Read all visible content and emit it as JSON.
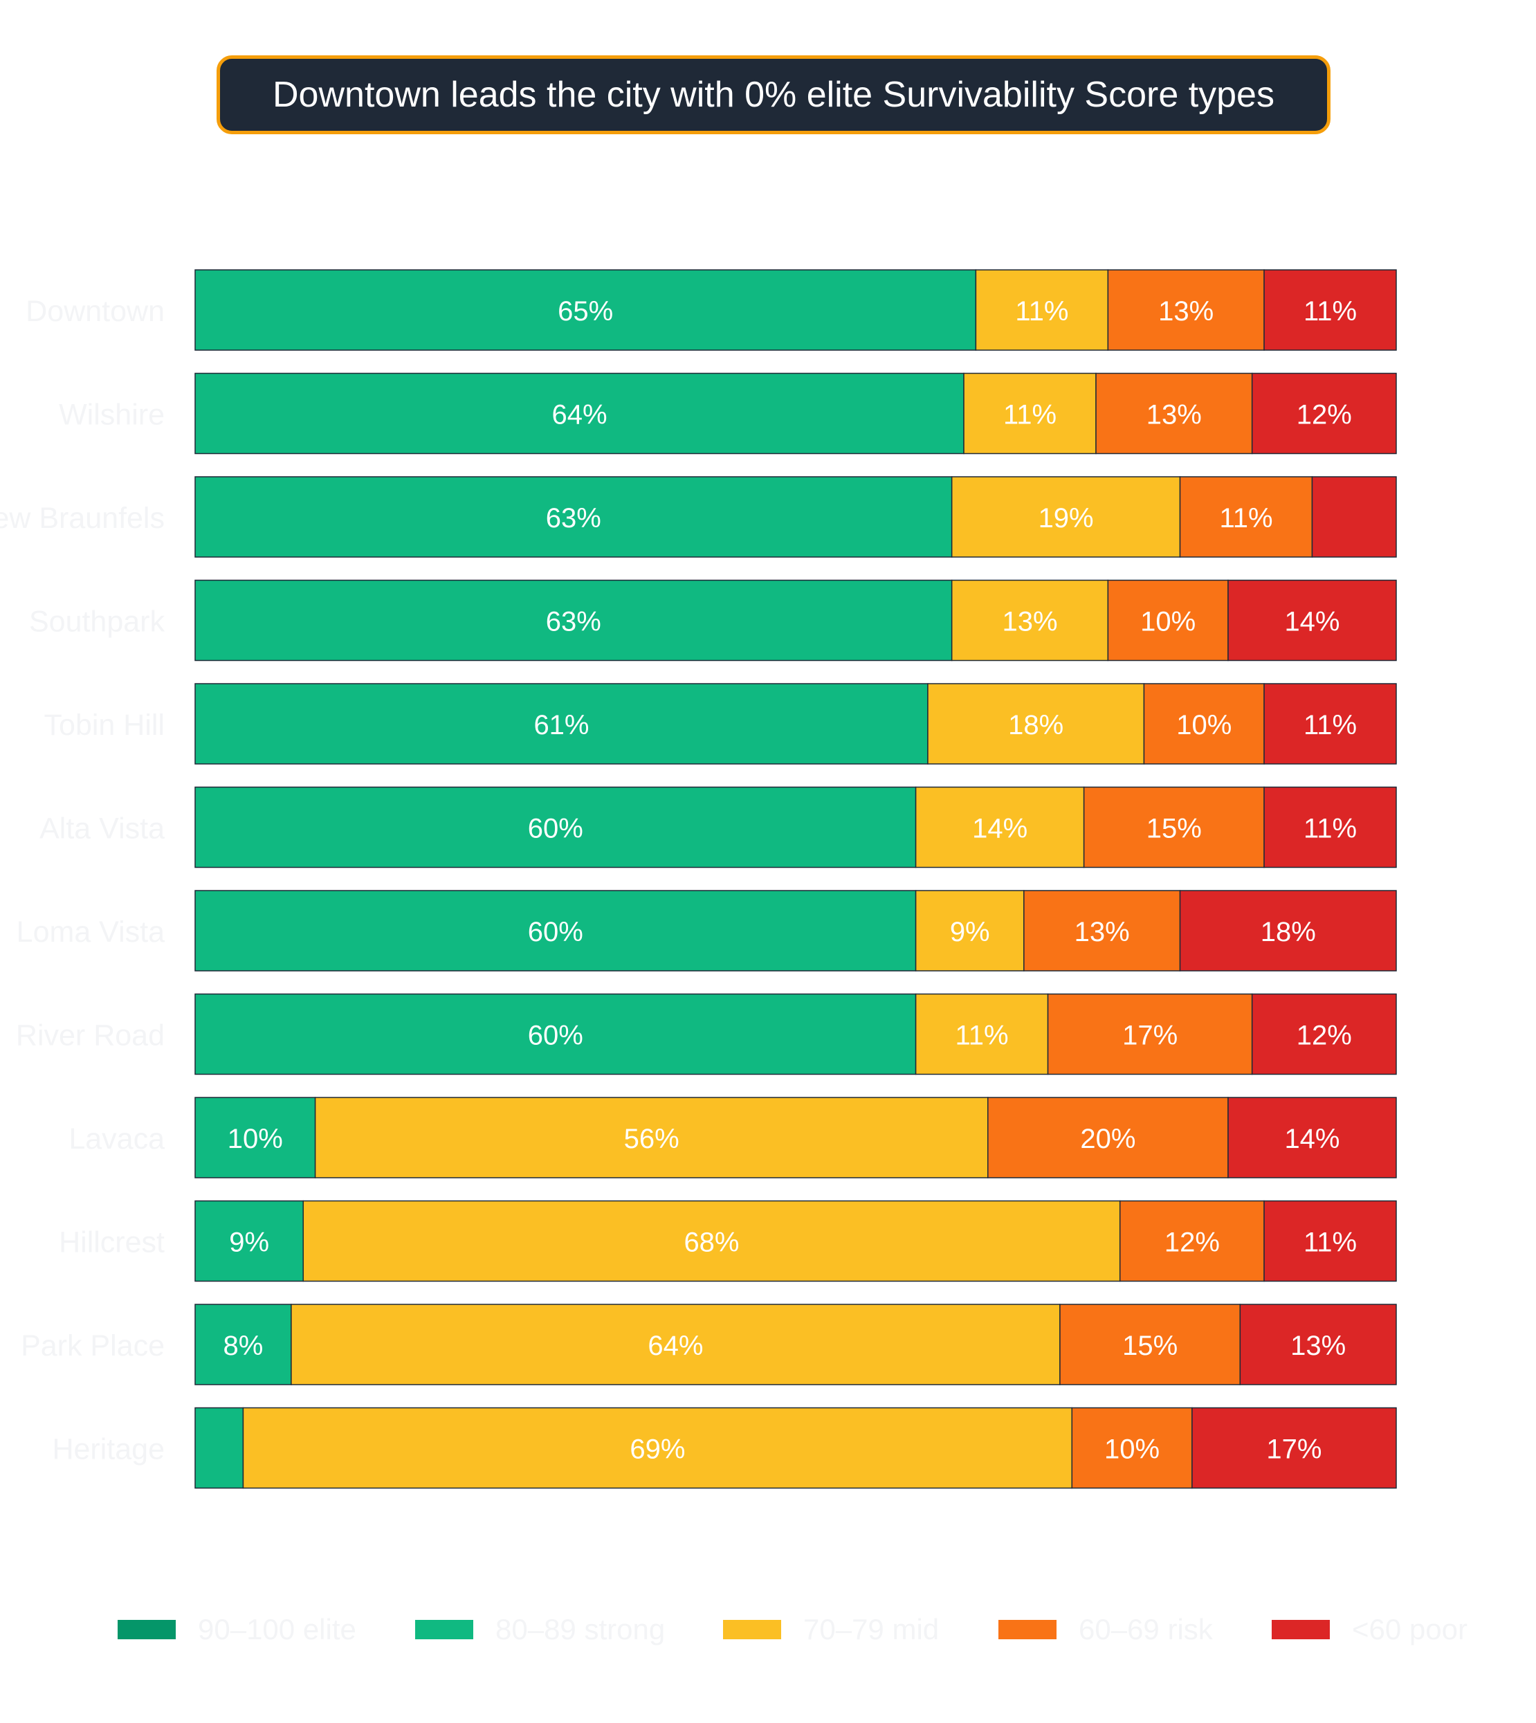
{
  "title": "Downtown leads the city with 0% elite Survivability Score types",
  "colors": {
    "elite": "#059669",
    "strong": "#10b981",
    "mid": "#fbbf24",
    "risk": "#f97316",
    "poor": "#dc2626"
  },
  "legend": [
    {
      "key": "elite",
      "label": "90–100 elite"
    },
    {
      "key": "strong",
      "label": "80–89 strong"
    },
    {
      "key": "mid",
      "label": "70–79 mid"
    },
    {
      "key": "risk",
      "label": "60–69 risk"
    },
    {
      "key": "poor",
      "label": "<60 poor"
    }
  ],
  "chart_data": {
    "type": "bar",
    "orientation": "horizontal",
    "stacked": true,
    "normalized_percent": true,
    "title": "Downtown leads the city with 0% elite Survivability Score types",
    "categories": [
      "Downtown",
      "Wilshire",
      "New Braunfels",
      "Southpark",
      "Tobin Hill",
      "Alta Vista",
      "Loma Vista",
      "River Road",
      "Lavaca",
      "Hillcrest",
      "Park Place",
      "Heritage"
    ],
    "series": [
      {
        "name": "90–100 elite",
        "key": "elite",
        "values": [
          0,
          0,
          0,
          0,
          0,
          0,
          0,
          0,
          0,
          0,
          0,
          0
        ]
      },
      {
        "name": "80–89 strong",
        "key": "strong",
        "values": [
          65,
          64,
          63,
          63,
          61,
          60,
          60,
          60,
          10,
          9,
          8,
          4
        ]
      },
      {
        "name": "70–79 mid",
        "key": "mid",
        "values": [
          11,
          11,
          19,
          13,
          18,
          14,
          9,
          11,
          56,
          68,
          64,
          69
        ]
      },
      {
        "name": "60–69 risk",
        "key": "risk",
        "values": [
          13,
          13,
          11,
          10,
          10,
          15,
          13,
          17,
          20,
          12,
          15,
          10
        ]
      },
      {
        "name": "<60 poor",
        "key": "poor",
        "values": [
          11,
          12,
          7,
          14,
          11,
          11,
          18,
          12,
          14,
          11,
          13,
          17
        ]
      }
    ],
    "xlim": [
      0,
      100
    ],
    "label_min_percent": 8,
    "legend_position": "bottom",
    "grid": false
  }
}
